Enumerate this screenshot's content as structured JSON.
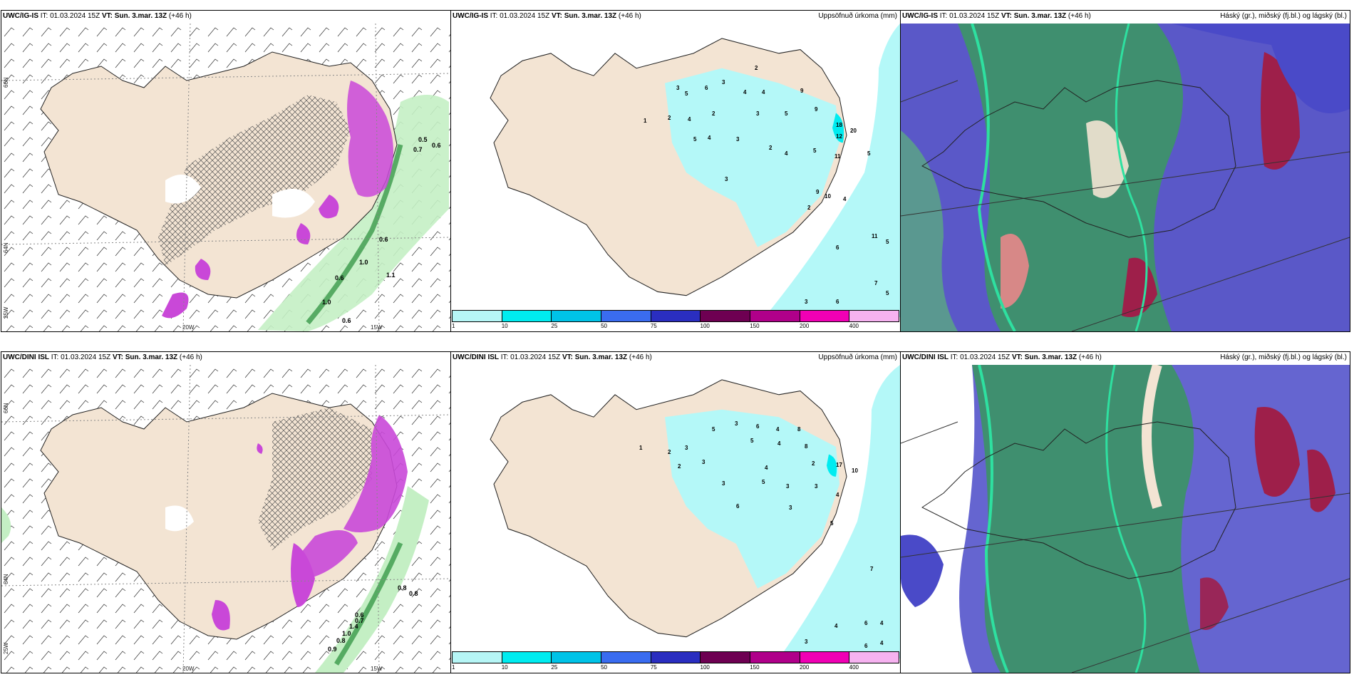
{
  "rows": [
    {
      "model": "UWC/IG-IS",
      "it_label": "IT:",
      "it_value": "01.03.2024 15Z",
      "vt_label": "VT:",
      "vt_value": "Sun. 3.mar. 13Z",
      "lead": "(+46 h)",
      "panel3_model": "UWC/IG-IS"
    },
    {
      "model": "UWC/DINI ISL",
      "it_label": "IT:",
      "it_value": "01.03.2024 15Z",
      "vt_label": "VT:",
      "vt_value": "Sun. 3.mar. 13Z",
      "lead": "(+46 h)",
      "panel3_model": "UWC/DINI ISL"
    }
  ],
  "precip_title": "Uppsöfnuð úrkoma (mm)",
  "cloud_title": "Háský (gr.), miðský (fj.bl.) og lágský (bl.)",
  "axis_labels": {
    "lat66": "66N",
    "lat64": "64N",
    "lat_low": "25W",
    "lon20": "20W",
    "lon15": "15W"
  },
  "colorbar": {
    "ticks": [
      "1",
      "10",
      "25",
      "50",
      "75",
      "100",
      "150",
      "200",
      "400"
    ],
    "colors": [
      "#b6f6f6",
      "#00ecf0",
      "#00c3e7",
      "#3a6cf0",
      "#2a2ec0",
      "#6e0052",
      "#b0008a",
      "#f000b4",
      "#f6b2f0"
    ]
  },
  "colors": {
    "land": "#f3e4d3",
    "precip_light": "#b4f8f8",
    "snow_magenta": "#c948d8",
    "green_light": "#b8ecb8",
    "green_dark": "#2a8a3a",
    "cloud_green": "#3f8f6f",
    "cloud_blue": "#4a4ac8",
    "cloud_red": "#9e1f4a"
  },
  "wind_labels_top": [
    "0.5",
    "0.6",
    "0.7",
    "0.6",
    "1.0",
    "1.1",
    "0.6",
    "1.0",
    "0.6"
  ],
  "wind_labels_bottom": [
    "0.6",
    "0.7",
    "1.4",
    "1.0",
    "0.8",
    "0.9",
    "0.8",
    "0.8"
  ],
  "precip_numbers_top": [
    "2",
    "3",
    "5",
    "6",
    "3",
    "4",
    "4",
    "9",
    "1",
    "2",
    "4",
    "2",
    "3",
    "5",
    "9",
    "18",
    "12",
    "20",
    "4",
    "3",
    "2",
    "5",
    "4",
    "5",
    "11",
    "5",
    "9",
    "10",
    "4",
    "3",
    "2",
    "11",
    "5",
    "6",
    "7",
    "5",
    "3",
    "6"
  ],
  "precip_numbers_bottom": [
    "5",
    "3",
    "6",
    "4",
    "8",
    "1",
    "2",
    "3",
    "5",
    "4",
    "8",
    "2",
    "3",
    "4",
    "17",
    "10",
    "3",
    "5",
    "3",
    "3",
    "4",
    "2",
    "6",
    "3",
    "7",
    "5",
    "3",
    "4",
    "6",
    "4",
    "6",
    "4"
  ]
}
